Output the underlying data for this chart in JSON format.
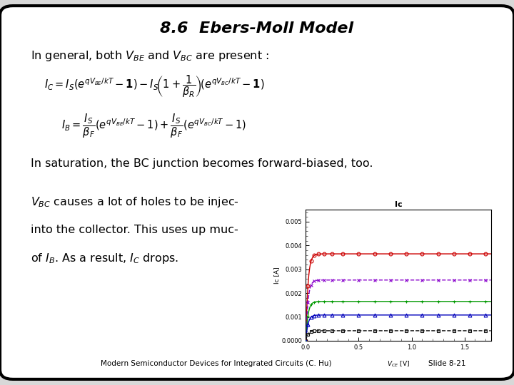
{
  "title": "8.6  Ebers-Moll Model",
  "bg_color": "#d8d8d8",
  "box_color": "white",
  "footer_text": "Modern Semiconductor Devices for Integrated Circuits (C. Hu)",
  "slide_label": "Slide 8-21",
  "plot_title": "Ic",
  "plot_ylabel": "Ic [A]",
  "plot_xlim": [
    0.0,
    1.75
  ],
  "plot_ylim": [
    0.0,
    0.0055
  ],
  "curves": [
    {
      "color": "#cc0000",
      "marker": "o",
      "linestyle": "-",
      "saturation": 0.00365,
      "rise_rate": 50
    },
    {
      "color": "#8800cc",
      "marker": "x",
      "linestyle": "--",
      "saturation": 0.00255,
      "rise_rate": 50
    },
    {
      "color": "#009900",
      "marker": "+",
      "linestyle": "-",
      "saturation": 0.00165,
      "rise_rate": 50
    },
    {
      "color": "#0000bb",
      "marker": "^",
      "linestyle": "-",
      "saturation": 0.00108,
      "rise_rate": 50
    },
    {
      "color": "#111111",
      "marker": "s",
      "linestyle": "--",
      "saturation": 0.00042,
      "rise_rate": 50
    }
  ]
}
